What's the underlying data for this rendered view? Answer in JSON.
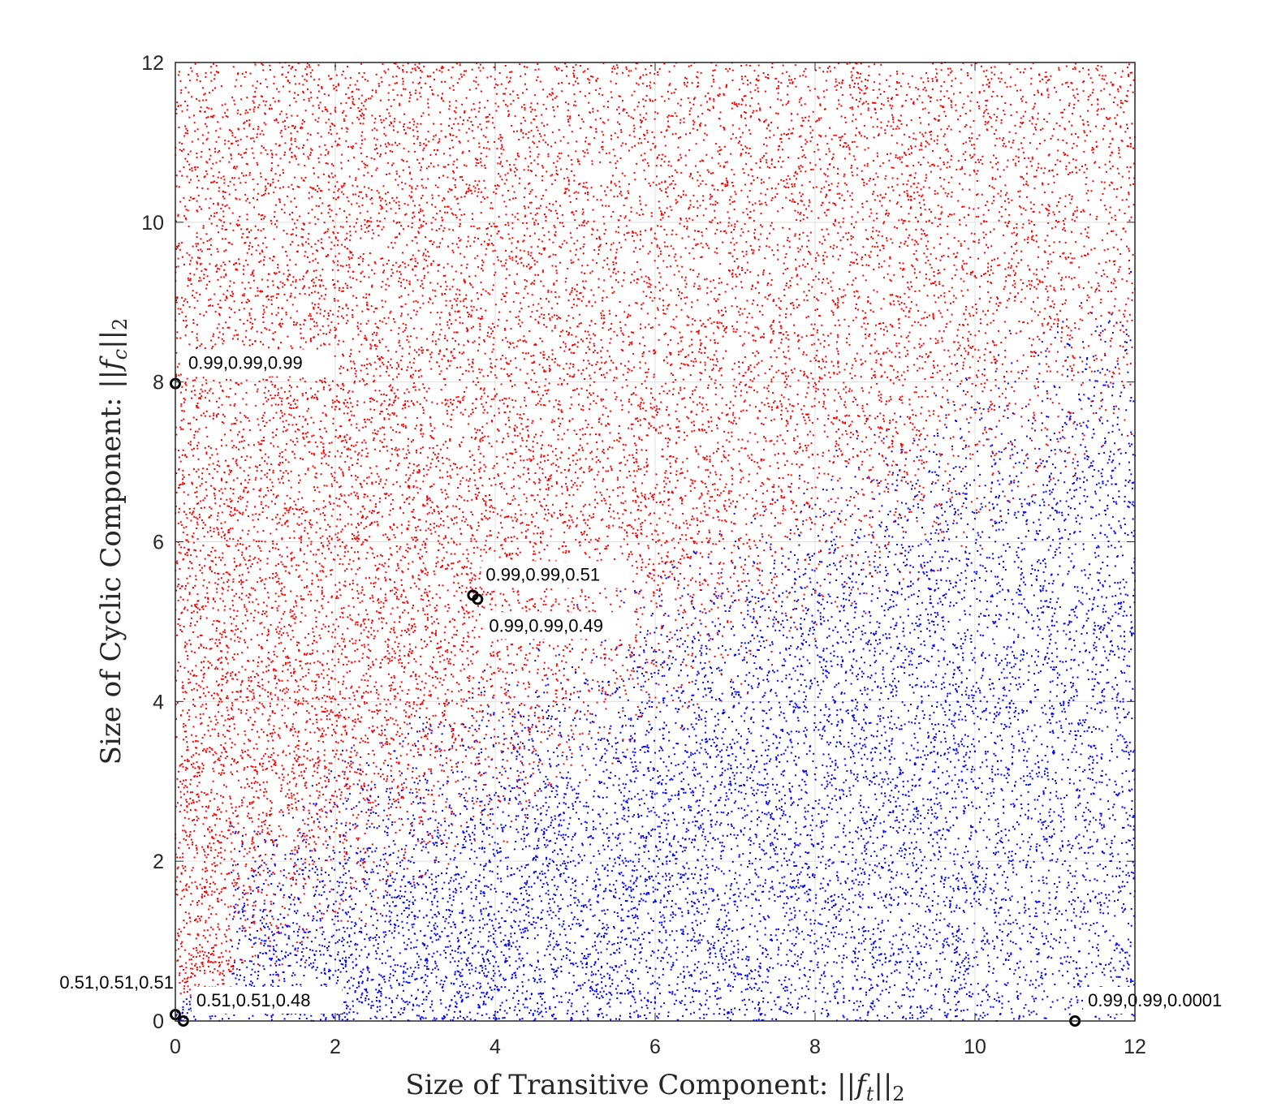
{
  "chart_data": {
    "type": "scatter",
    "title": "",
    "xlabel": "Size of Transitive Component: ||f_t||_2",
    "ylabel": "Size of Cyclic Component: ||f_c||_2",
    "xlim": [
      0,
      12
    ],
    "ylim": [
      0,
      12
    ],
    "grid": true,
    "x_ticks": [
      "0",
      "2",
      "4",
      "6",
      "8",
      "10",
      "12"
    ],
    "y_ticks": [
      "0",
      "2",
      "4",
      "6",
      "8",
      "10",
      "12"
    ],
    "series": [
      {
        "color": "#ff0000",
        "region": "cyclic-dominant (upper-left)",
        "approx_points": 14000
      },
      {
        "color": "#0000ff",
        "region": "transitive-dominant (lower-right)",
        "approx_points": 26000
      }
    ],
    "annotations": [
      {
        "x": 0.0,
        "y": 7.98,
        "label": "0.99,0.99,0.99",
        "label_pos": "right-above"
      },
      {
        "x": 3.72,
        "y": 5.33,
        "label": "0.99,0.99,0.51",
        "label_pos": "right-above"
      },
      {
        "x": 3.78,
        "y": 5.28,
        "label": "0.99,0.99,0.49",
        "label_pos": "right-below"
      },
      {
        "x": 0.0,
        "y": 0.08,
        "label": "0.51,0.51,0.51",
        "label_pos": "left-above"
      },
      {
        "x": 0.1,
        "y": 0.0,
        "label": "0.51,0.51,0.48",
        "label_pos": "right-above"
      },
      {
        "x": 11.25,
        "y": 0.0,
        "label": "0.99,0.99,0.0001",
        "label_pos": "right-above"
      }
    ]
  }
}
